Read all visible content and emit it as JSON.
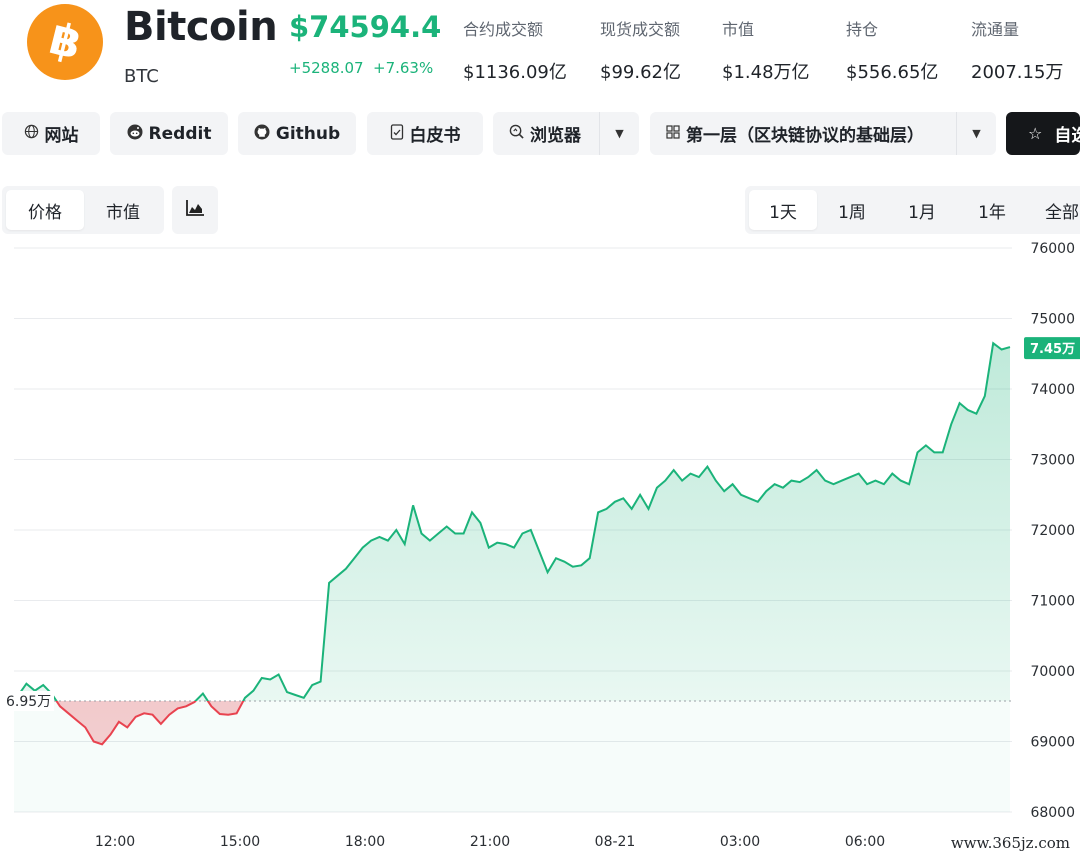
{
  "coin": {
    "name": "Bitcoin",
    "symbol": "BTC",
    "price": "$74594.4",
    "change_abs": "+5288.07",
    "change_pct": "+7.63%",
    "logo_glyph": "฿",
    "logo_color": "#f7931a"
  },
  "stats": [
    {
      "label": "合约成交额",
      "value": "$1136.09亿"
    },
    {
      "label": "现货成交额",
      "value": "$99.62亿"
    },
    {
      "label": "市值",
      "value": "$1.48万亿"
    },
    {
      "label": "持仓",
      "value": "$556.65亿"
    },
    {
      "label": "流通量",
      "value": "2007.15万"
    }
  ],
  "links": {
    "website": "网站",
    "reddit": "Reddit",
    "github": "Github",
    "whitepaper": "白皮书",
    "explorer": "浏览器",
    "category": "第一层（区块链协议的基础层）",
    "watchlist": "自选"
  },
  "tabs": {
    "metric": [
      "价格",
      "市值"
    ],
    "metric_active": 0,
    "range": [
      "1天",
      "1周",
      "1月",
      "1年",
      "全部"
    ],
    "range_active": 0
  },
  "colors": {
    "up": "#1bb37a",
    "down": "#e8434f",
    "accent_dark": "#15171a"
  },
  "chart_data": {
    "type": "area",
    "title": "",
    "xlabel": "",
    "ylabel": "",
    "x_ticks": [
      "12:00",
      "15:00",
      "18:00",
      "21:00",
      "08-21",
      "03:00",
      "06:00"
    ],
    "y_ticks": [
      68000,
      69000,
      70000,
      71000,
      72000,
      73000,
      74000,
      75000,
      76000
    ],
    "ylim": [
      68000,
      76000
    ],
    "baseline": 69575,
    "baseline_label": "6.95万",
    "last_label": "7.45万",
    "grid": true,
    "series": [
      {
        "values": [
          69650,
          69820,
          69720,
          69800,
          69680,
          69500,
          69400,
          69300,
          69200,
          69000,
          68960,
          69100,
          69280,
          69200,
          69350,
          69400,
          69380,
          69250,
          69380,
          69470,
          69500,
          69560,
          69680,
          69500,
          69390,
          69380,
          69400,
          69620,
          69720,
          69900,
          69880,
          69950,
          69700,
          69660,
          69620,
          69800,
          69850,
          71250,
          71350,
          71450,
          71600,
          71750,
          71850,
          71900,
          71850,
          72000,
          71800,
          72350,
          71950,
          71850,
          71950,
          72050,
          71950,
          71950,
          72250,
          72100,
          71750,
          71820,
          71800,
          71750,
          71950,
          72000,
          71700,
          71400,
          71600,
          71550,
          71480,
          71500,
          71600,
          72250,
          72300,
          72400,
          72450,
          72300,
          72500,
          72300,
          72600,
          72700,
          72850,
          72700,
          72800,
          72750,
          72900,
          72700,
          72550,
          72650,
          72500,
          72450,
          72400,
          72550,
          72650,
          72600,
          72700,
          72680,
          72750,
          72850,
          72700,
          72650,
          72700,
          72750,
          72800,
          72650,
          72700,
          72650,
          72800,
          72700,
          72650,
          73100,
          73200,
          73100,
          73100,
          73500,
          73800,
          73700,
          73650,
          73900,
          74650,
          74560,
          74594
        ]
      }
    ]
  },
  "watermark": "www.365jz.com"
}
